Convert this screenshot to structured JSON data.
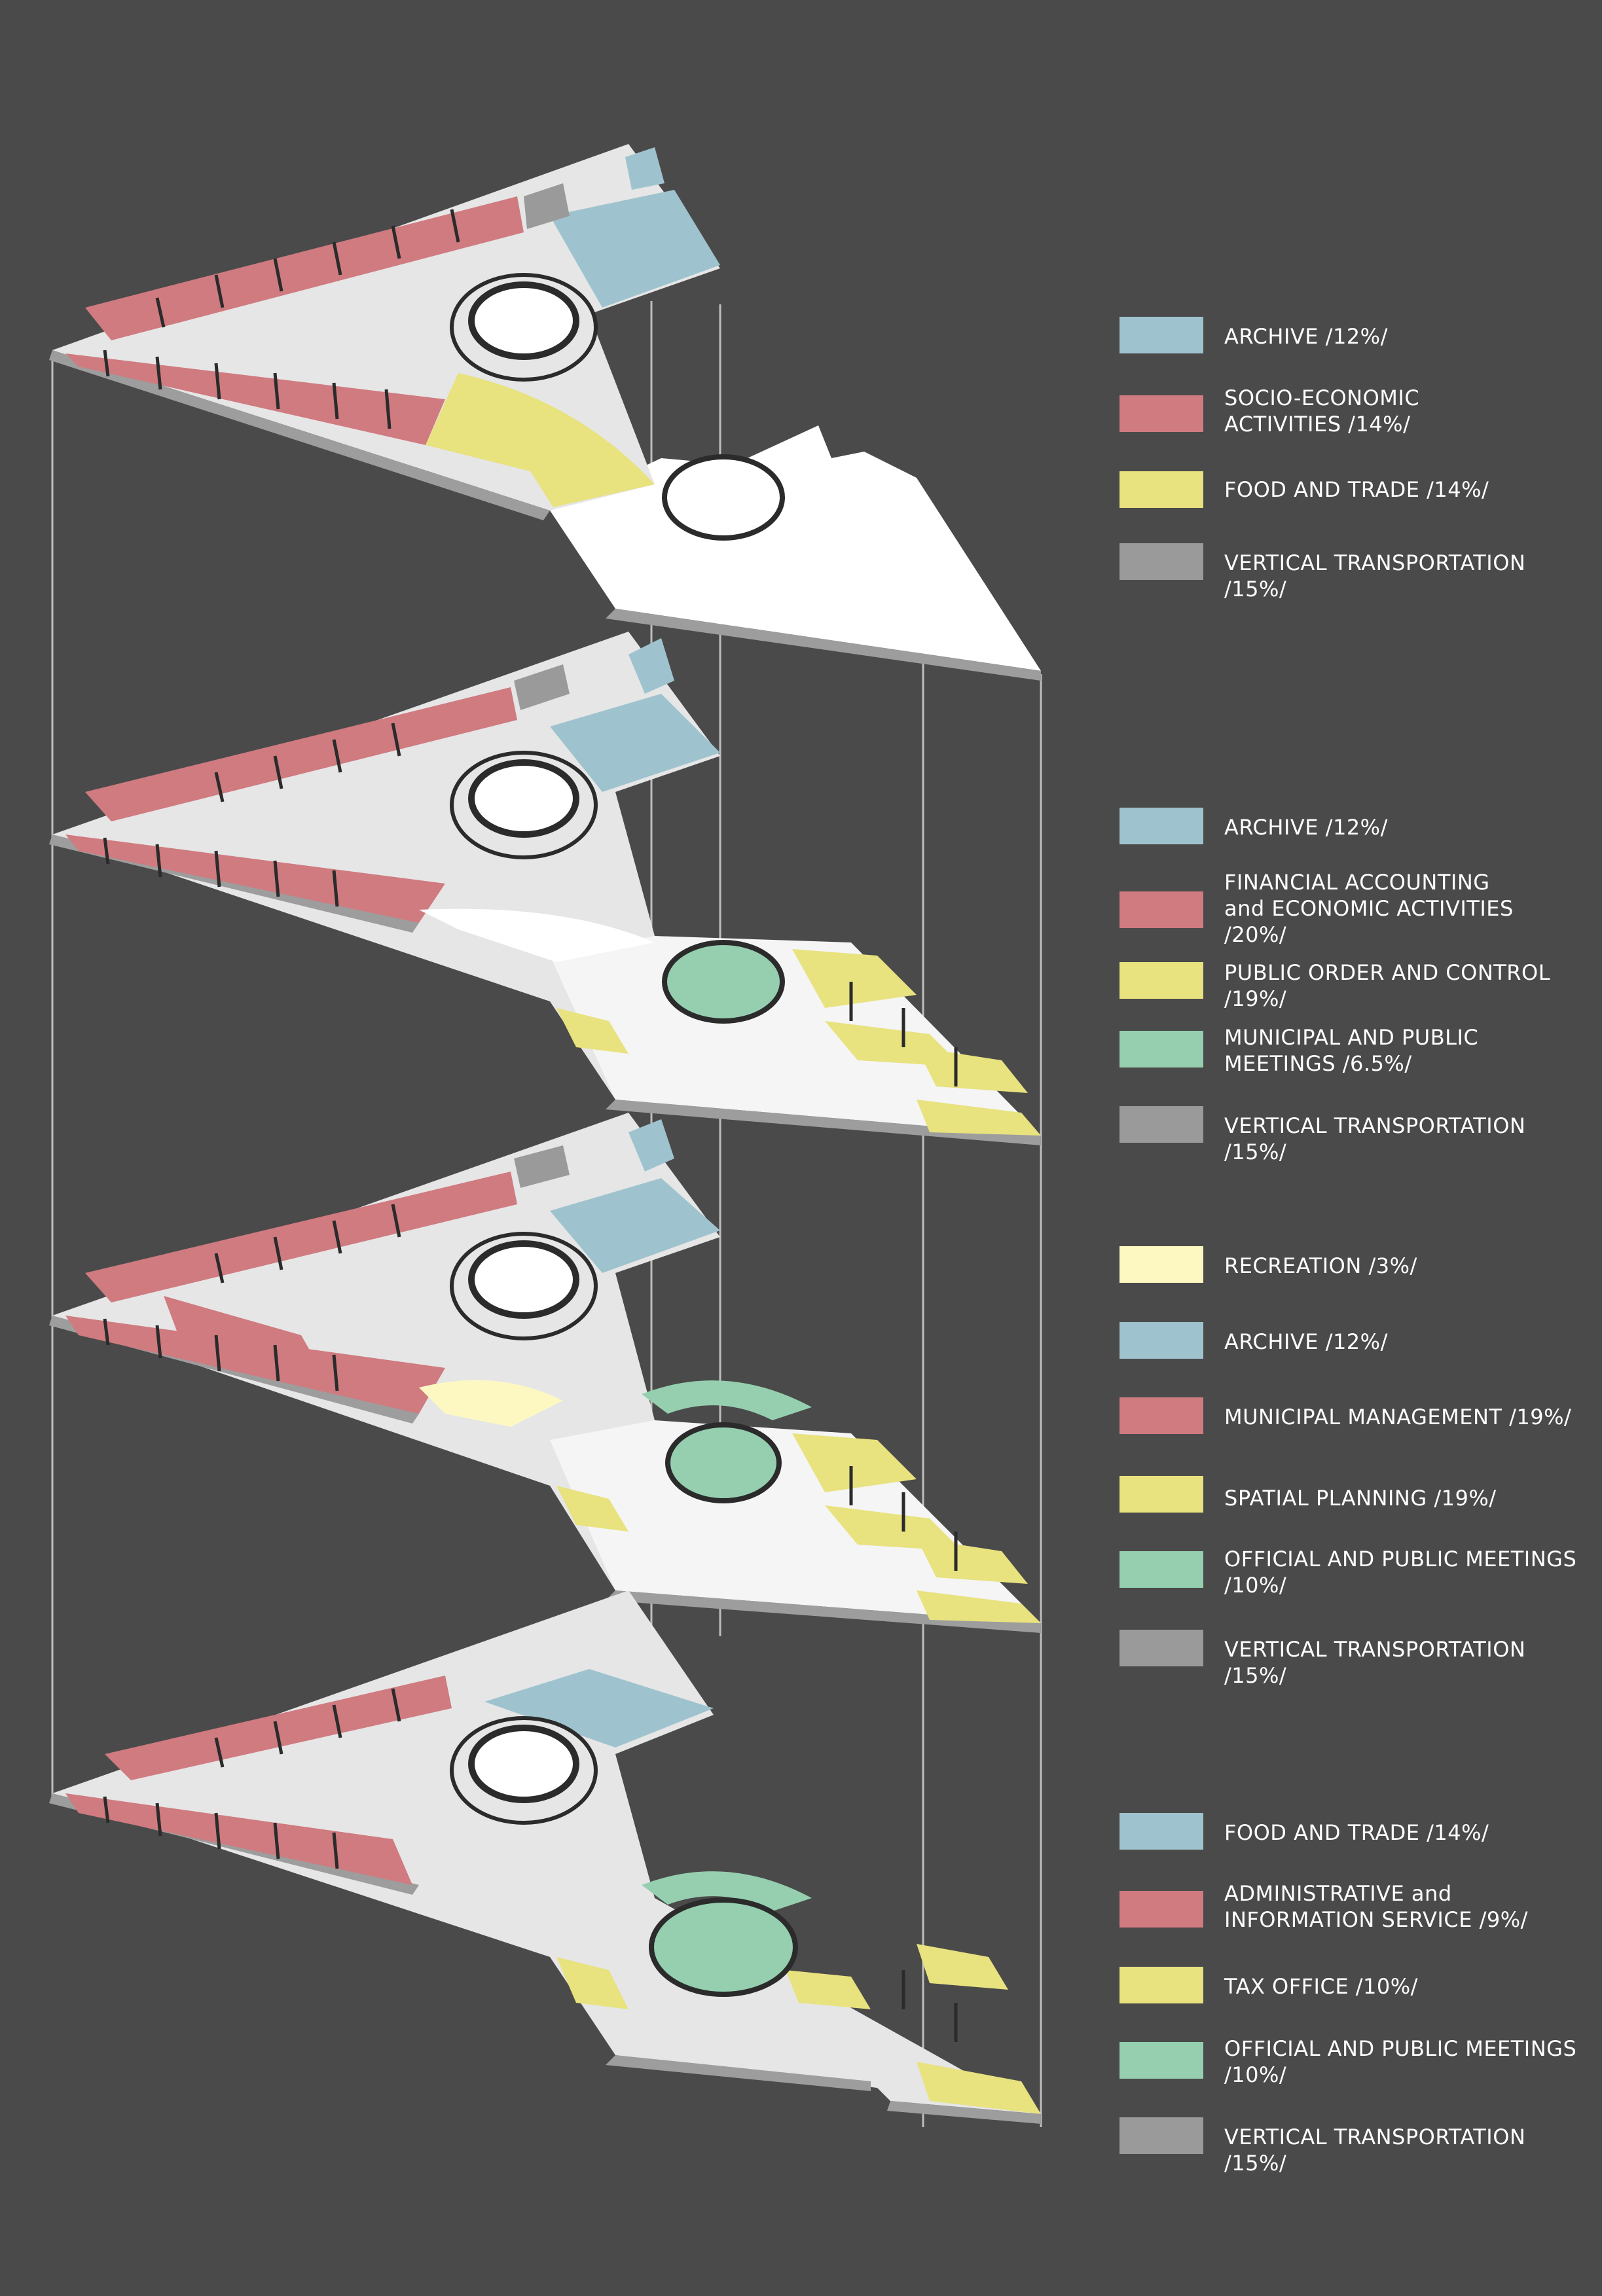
{
  "colors": {
    "background": "#4a4a4a",
    "archive_blue": "#9fc3ce",
    "red": "#cf7b80",
    "yellow": "#e8e27f",
    "green": "#95cfb0",
    "gray": "#9a9a9a",
    "light_yellow": "#fdf8c2",
    "slab": "#e6e6e6",
    "slab_edge": "#9d9d9d",
    "wall": "#2b2b2b"
  },
  "legends": [
    {
      "items": [
        {
          "label": "ARCHIVE /12%/",
          "color": "#9fc3ce"
        },
        {
          "label": "SOCIO-ECONOMIC\nACTIVITIES /14%/",
          "color": "#cf7b80"
        },
        {
          "label": "FOOD AND TRADE /14%/",
          "color": "#e8e27f"
        },
        {
          "label": "VERTICAL TRANSPORTATION /15%/",
          "color": "#9a9a9a"
        }
      ]
    },
    {
      "items": [
        {
          "label": "ARCHIVE /12%/",
          "color": "#9fc3ce"
        },
        {
          "label": "FINANCIAL ACCOUNTING\nand ECONOMIC ACTIVITIES\n/20%/",
          "color": "#cf7b80"
        },
        {
          "label": "PUBLIC ORDER AND CONTROL\n/19%/",
          "color": "#e8e27f"
        },
        {
          "label": "MUNICIPAL AND PUBLIC\nMEETINGS /6.5%/",
          "color": "#95cfb0"
        },
        {
          "label": "VERTICAL TRANSPORTATION /15%/",
          "color": "#9a9a9a"
        }
      ]
    },
    {
      "items": [
        {
          "label": "RECREATION /3%/",
          "color": "#fdf8c2"
        },
        {
          "label": "ARCHIVE /12%/",
          "color": "#9fc3ce"
        },
        {
          "label": "MUNICIPAL MANAGEMENT /19%/",
          "color": "#cf7b80"
        },
        {
          "label": "SPATIAL PLANNING /19%/",
          "color": "#e8e27f"
        },
        {
          "label": "OFFICIAL AND PUBLIC MEETINGS\n/10%/",
          "color": "#95cfb0"
        },
        {
          "label": "VERTICAL TRANSPORTATION /15%/",
          "color": "#9a9a9a"
        }
      ]
    },
    {
      "items": [
        {
          "label": "FOOD AND TRADE /14%/",
          "color": "#9fc3ce"
        },
        {
          "label": "ADMINISTRATIVE and\nINFORMATION SERVICE /9%/",
          "color": "#cf7b80"
        },
        {
          "label": "TAX OFFICE /10%/",
          "color": "#e8e27f"
        },
        {
          "label": "OFFICIAL AND PUBLIC MEETINGS\n/10%/",
          "color": "#95cfb0"
        },
        {
          "label": "VERTICAL TRANSPORTATION /15%/",
          "color": "#9a9a9a"
        }
      ]
    }
  ]
}
